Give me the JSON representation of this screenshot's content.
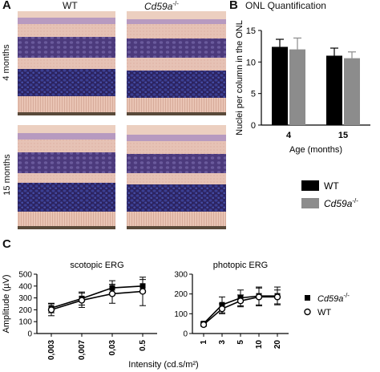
{
  "panels": {
    "a": {
      "letter": "A",
      "col_wt": "WT",
      "col_ko_base": "Cd59a",
      "col_ko_sup": "-/-",
      "row_4": "4 months",
      "row_15": "15 months"
    },
    "b": {
      "letter": "B",
      "title": "ONL Quantification"
    },
    "c": {
      "letter": "C"
    }
  },
  "colors": {
    "wt_bar": "#000000",
    "ko_bar": "#8c8c8c",
    "tissue_pink": "#e7c3b4",
    "nuclei_purple": "#3a2e72"
  },
  "chart_data": [
    {
      "id": "onl",
      "type": "bar",
      "categories": [
        "4",
        "15"
      ],
      "series": [
        {
          "name": "WT",
          "values": [
            12.4,
            11.0
          ],
          "errors": [
            1.2,
            1.2
          ],
          "color": "#000000"
        },
        {
          "name": "Cd59a-/-",
          "values": [
            12.0,
            10.6
          ],
          "errors": [
            1.8,
            1.0
          ],
          "color": "#8c8c8c"
        }
      ],
      "ylabel": "Nuclei per column in the ONL",
      "xlabel": "Age (months)",
      "ylim": [
        0,
        15
      ],
      "yticks": [
        "0",
        "5",
        "10",
        "15"
      ],
      "legend": {
        "wt": "WT",
        "ko_base": "Cd59a",
        "ko_sup": "-/-"
      }
    },
    {
      "id": "scotopic",
      "type": "line",
      "title": "scotopic ERG",
      "categories": [
        "0,003",
        "0,007",
        "0,03",
        "0.5"
      ],
      "series": [
        {
          "name": "Cd59a-/-",
          "values": [
            215,
            295,
            385,
            400
          ],
          "errors": [
            40,
            55,
            60,
            55
          ],
          "marker": "square"
        },
        {
          "name": "WT",
          "values": [
            200,
            280,
            335,
            355
          ],
          "errors": [
            50,
            60,
            80,
            120
          ],
          "marker": "circle"
        }
      ],
      "ylabel": "Amplitude (µV)",
      "ylim": [
        0,
        500
      ],
      "yticks": [
        "0",
        "100",
        "200",
        "300",
        "400",
        "500"
      ]
    },
    {
      "id": "photopic",
      "type": "line",
      "title": "photopic ERG",
      "categories": [
        "1",
        "3",
        "5",
        "10",
        "20"
      ],
      "series": [
        {
          "name": "Cd59a-/-",
          "values": [
            50,
            145,
            180,
            190,
            190
          ],
          "errors": [
            8,
            40,
            40,
            45,
            45
          ],
          "marker": "square"
        },
        {
          "name": "WT",
          "values": [
            45,
            125,
            165,
            185,
            185
          ],
          "errors": [
            8,
            25,
            30,
            45,
            35
          ],
          "marker": "circle"
        }
      ],
      "xlabel": "Intensity (cd.s/m²)",
      "ylim": [
        0,
        300
      ],
      "yticks": [
        "0",
        "100",
        "200",
        "300"
      ],
      "legend": {
        "ko_base": "Cd59a",
        "ko_sup": "-/-",
        "wt": "WT"
      }
    }
  ]
}
